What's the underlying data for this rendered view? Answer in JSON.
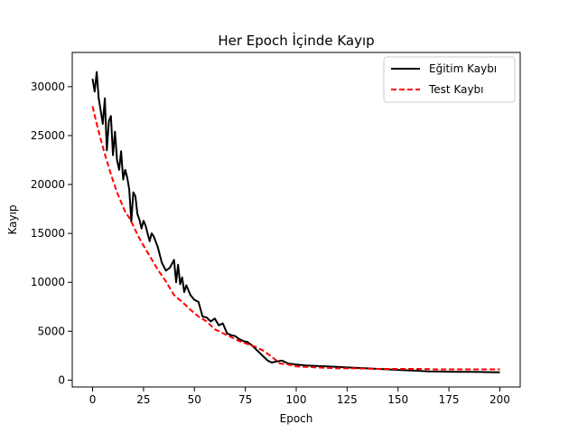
{
  "chart_data": {
    "type": "line",
    "title": "Her Epoch İçinde Kayıp",
    "xlabel": "Epoch",
    "ylabel": "Kayıp",
    "xlim": [
      -10,
      210
    ],
    "ylim": [
      -700,
      33500
    ],
    "xticks": [
      0,
      25,
      50,
      75,
      100,
      125,
      150,
      175,
      200
    ],
    "yticks": [
      0,
      5000,
      10000,
      15000,
      20000,
      25000,
      30000
    ],
    "grid": false,
    "legend_position": "top-right",
    "series": [
      {
        "name": "Eğitim Kaybı",
        "color": "#000000",
        "style": "solid",
        "x": [
          0,
          1,
          2,
          3,
          4,
          5,
          6,
          7,
          8,
          9,
          10,
          11,
          12,
          13,
          14,
          15,
          16,
          17,
          18,
          19,
          20,
          21,
          22,
          23,
          24,
          25,
          26,
          27,
          28,
          29,
          30,
          32,
          34,
          36,
          38,
          40,
          41,
          42,
          43,
          44,
          45,
          46,
          48,
          50,
          52,
          54,
          56,
          58,
          60,
          62,
          64,
          66,
          68,
          70,
          72,
          74,
          76,
          78,
          80,
          82,
          84,
          86,
          88,
          90,
          93,
          96,
          100,
          105,
          110,
          115,
          120,
          125,
          130,
          135,
          140,
          145,
          150,
          155,
          160,
          165,
          170,
          175,
          180,
          185,
          190,
          195,
          200
        ],
        "y": [
          30800,
          29500,
          31500,
          28800,
          27500,
          26200,
          28800,
          23500,
          26500,
          27000,
          23000,
          25400,
          22500,
          21500,
          23400,
          20500,
          21500,
          20700,
          19500,
          16200,
          19200,
          18800,
          17000,
          16400,
          15500,
          16300,
          15800,
          15000,
          14200,
          15000,
          14700,
          13600,
          12000,
          11200,
          11500,
          12300,
          10000,
          11800,
          9800,
          10500,
          9000,
          9700,
          8700,
          8200,
          8000,
          6500,
          6400,
          6000,
          6300,
          5600,
          5800,
          4800,
          4600,
          4500,
          4200,
          4000,
          3900,
          3600,
          3200,
          2800,
          2400,
          2000,
          1800,
          1900,
          2000,
          1700,
          1600,
          1500,
          1450,
          1400,
          1350,
          1300,
          1250,
          1200,
          1150,
          1100,
          1050,
          1000,
          950,
          900,
          880,
          860,
          850,
          840,
          830,
          820,
          800
        ]
      },
      {
        "name": "Test Kaybı",
        "color": "#ff0000",
        "style": "dashed",
        "x": [
          0,
          2,
          4,
          6,
          8,
          10,
          12,
          14,
          16,
          18,
          20,
          22,
          24,
          26,
          28,
          30,
          32,
          34,
          36,
          38,
          40,
          44,
          48,
          52,
          56,
          60,
          64,
          68,
          72,
          76,
          80,
          84,
          88,
          92,
          96,
          100,
          105,
          110,
          115,
          120,
          125,
          130,
          140,
          150,
          160,
          170,
          180,
          190,
          200
        ],
        "y": [
          28000,
          26200,
          24600,
          23100,
          21700,
          20400,
          19200,
          18200,
          17200,
          16600,
          15800,
          14900,
          14100,
          13400,
          12700,
          12000,
          11300,
          10700,
          10100,
          9400,
          8700,
          8000,
          7200,
          6500,
          6000,
          5200,
          4800,
          4400,
          4000,
          3700,
          3400,
          3000,
          2400,
          1700,
          1600,
          1400,
          1350,
          1300,
          1250,
          1200,
          1200,
          1200,
          1150,
          1150,
          1150,
          1100,
          1100,
          1100,
          1100
        ]
      }
    ]
  }
}
